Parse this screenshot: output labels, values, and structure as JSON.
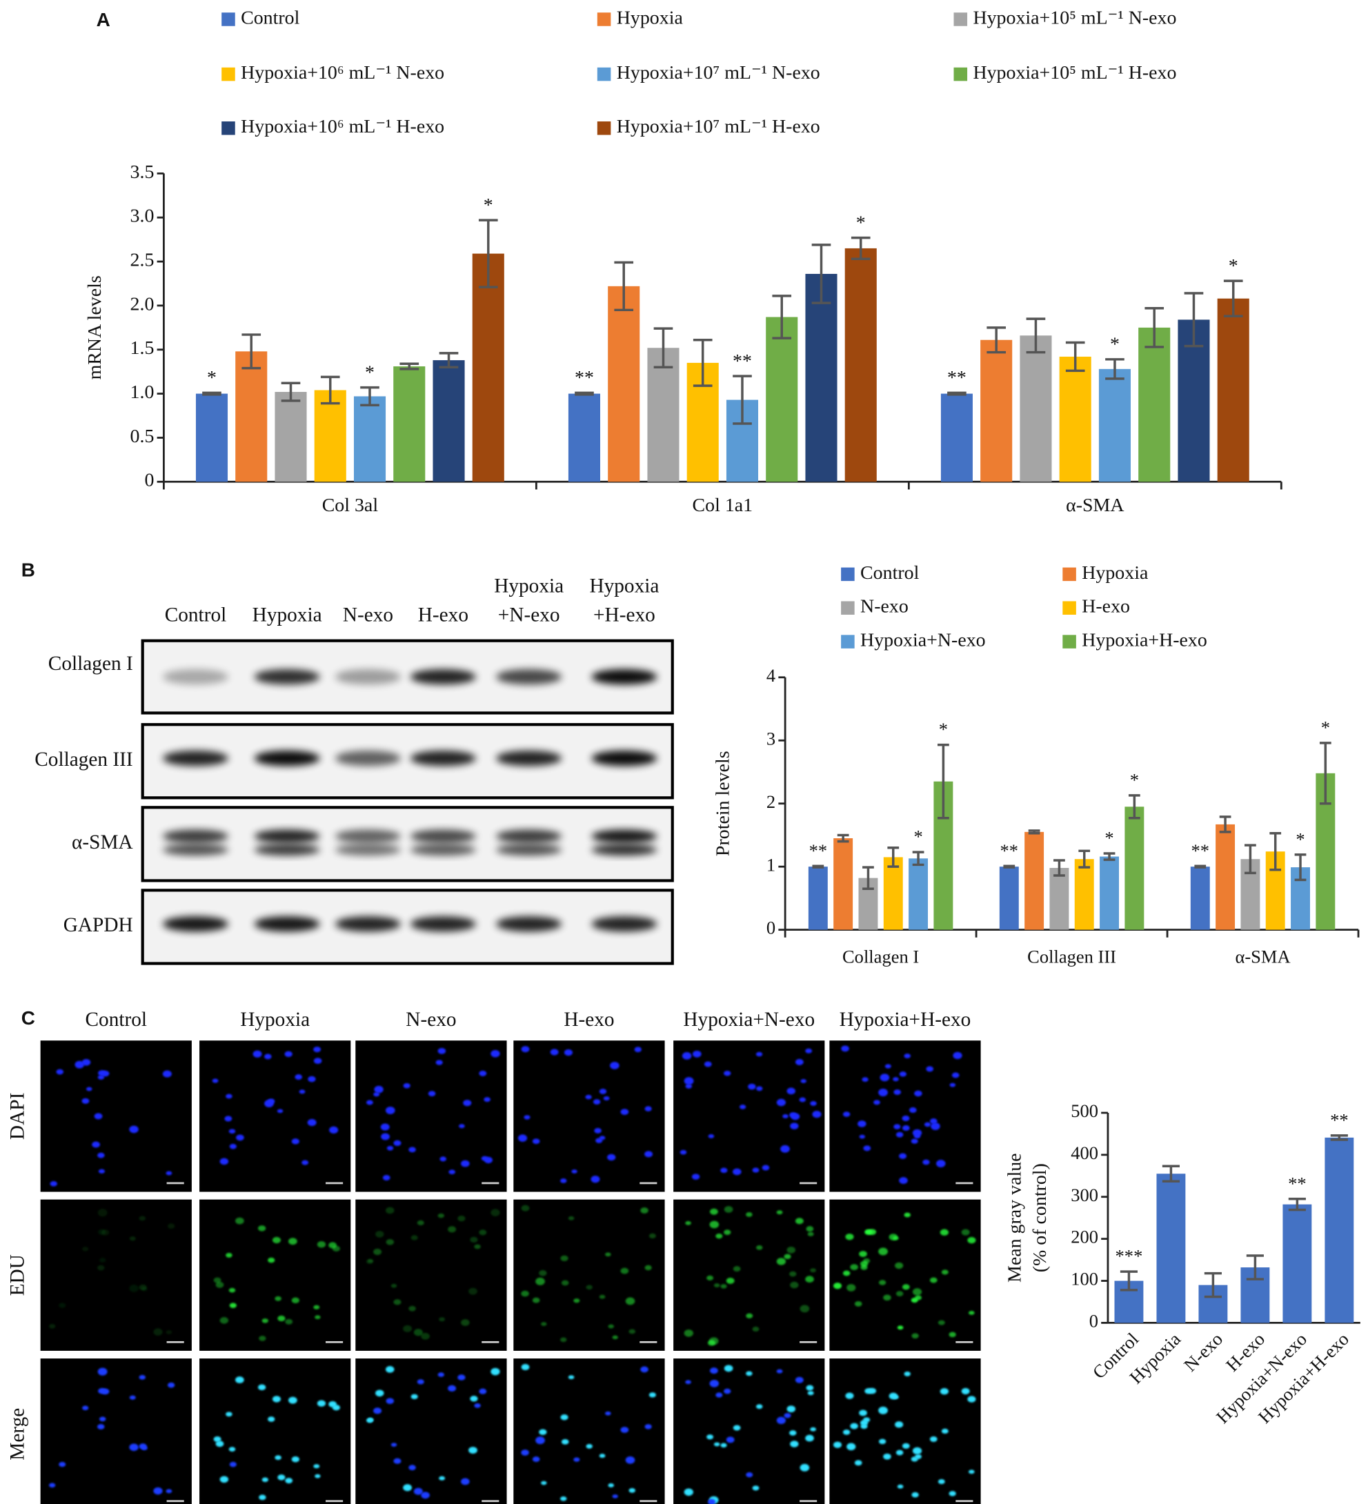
{
  "panel_labels": [
    "A",
    "B",
    "C"
  ],
  "chart_data": [
    {
      "type": "bar",
      "y_label": "mRNA levels",
      "categories": [
        "Col 3al",
        "Col 1a1",
        "α-SMA"
      ],
      "ylim": [
        0,
        3.5
      ],
      "yticks": [
        0,
        0.5,
        {
          "value": 1,
          "label": "1.0"
        },
        1.5,
        {
          "value": 2,
          "label": "2.0"
        },
        2.5,
        {
          "value": 3,
          "label": "3.0"
        },
        3.5
      ],
      "series": [
        {
          "name": "Control",
          "color": "#4472c4",
          "values": [
            1.0,
            1.0,
            1.0
          ],
          "errors": [
            0.01,
            0.01,
            0.01
          ],
          "marks": [
            "*",
            "**",
            "**"
          ]
        },
        {
          "name": "Hypoxia",
          "color": "#ed7d31",
          "values": [
            1.48,
            2.22,
            1.61
          ],
          "errors": [
            0.19,
            0.27,
            0.14
          ],
          "marks": [
            null,
            null,
            null
          ]
        },
        {
          "name": "Hypoxia+10⁵ mL⁻¹ N-exo",
          "color": "#a5a5a5",
          "values": [
            1.02,
            1.52,
            1.66
          ],
          "errors": [
            0.1,
            0.22,
            0.19
          ],
          "marks": [
            null,
            null,
            null
          ]
        },
        {
          "name": "Hypoxia+10⁶ mL⁻¹ N-exo",
          "color": "#ffc000",
          "values": [
            1.04,
            1.35,
            1.42
          ],
          "errors": [
            0.15,
            0.26,
            0.16
          ],
          "marks": [
            null,
            null,
            null
          ]
        },
        {
          "name": "Hypoxia+10⁷ mL⁻¹ N-exo",
          "color": "#5b9bd5",
          "values": [
            0.97,
            0.93,
            1.28
          ],
          "errors": [
            0.1,
            0.27,
            0.11
          ],
          "marks": [
            "*",
            "**",
            "*"
          ]
        },
        {
          "name": "Hypoxia+10⁵ mL⁻¹ H-exo",
          "color": "#70ad47",
          "values": [
            1.31,
            1.87,
            1.75
          ],
          "errors": [
            0.03,
            0.24,
            0.22
          ],
          "marks": [
            null,
            null,
            null
          ]
        },
        {
          "name": "Hypoxia+10⁶ mL⁻¹ H-exo",
          "color": "#264478",
          "values": [
            1.38,
            2.36,
            1.84
          ],
          "errors": [
            0.08,
            0.33,
            0.3
          ],
          "marks": [
            null,
            null,
            null
          ]
        },
        {
          "name": "Hypoxia+10⁷ mL⁻¹ H-exo",
          "color": "#9e480e",
          "values": [
            2.59,
            2.65,
            2.08
          ],
          "errors": [
            0.38,
            0.12,
            0.2
          ],
          "marks": [
            "*",
            "*",
            "*"
          ]
        }
      ]
    },
    {
      "type": "bar",
      "y_label": "Protein levels",
      "categories": [
        "Collagen I",
        "Collagen III",
        "α-SMA"
      ],
      "ylim": [
        0,
        4
      ],
      "yticks": [
        0,
        1,
        2,
        3,
        4
      ],
      "series": [
        {
          "name": "Control",
          "color": "#4472c4",
          "values": [
            1.0,
            1.0,
            1.0
          ],
          "errors": [
            0.01,
            0.01,
            0.01
          ],
          "marks": [
            "**",
            "**",
            "**"
          ]
        },
        {
          "name": "Hypoxia",
          "color": "#ed7d31",
          "values": [
            1.45,
            1.55,
            1.67
          ],
          "errors": [
            0.05,
            0.02,
            0.12
          ],
          "marks": [
            null,
            null,
            null
          ]
        },
        {
          "name": "N-exo",
          "color": "#a5a5a5",
          "values": [
            0.82,
            0.98,
            1.12
          ],
          "errors": [
            0.17,
            0.12,
            0.22
          ],
          "marks": [
            null,
            null,
            null
          ]
        },
        {
          "name": "H-exo",
          "color": "#ffc000",
          "values": [
            1.15,
            1.12,
            1.24
          ],
          "errors": [
            0.15,
            0.13,
            0.29
          ],
          "marks": [
            null,
            null,
            null
          ]
        },
        {
          "name": "Hypoxia+N-exo",
          "color": "#5b9bd5",
          "values": [
            1.13,
            1.16,
            0.99
          ],
          "errors": [
            0.1,
            0.05,
            0.2
          ],
          "marks": [
            "*",
            "*",
            "*"
          ]
        },
        {
          "name": "Hypoxia+H-exo",
          "color": "#70ad47",
          "values": [
            2.35,
            1.95,
            2.48
          ],
          "errors": [
            0.58,
            0.18,
            0.48
          ],
          "marks": [
            "*",
            "*",
            "*"
          ]
        }
      ]
    },
    {
      "type": "bar",
      "y_label": [
        "Mean gray value",
        "(% of control)"
      ],
      "categories": [
        "Control",
        "Hypoxia",
        "N-exo",
        "H-exo",
        "Hypoxia+N-exo",
        "Hypoxia+H-exo"
      ],
      "color": "#4472c4",
      "values": [
        100,
        355,
        90,
        132,
        282,
        441
      ],
      "errors": [
        22,
        18,
        28,
        28,
        13,
        5
      ],
      "marks": [
        "***",
        null,
        null,
        null,
        "**",
        "**"
      ],
      "ylim": [
        0,
        500
      ],
      "yticks": [
        0,
        100,
        200,
        300,
        400,
        500
      ]
    }
  ],
  "blot": {
    "columns": [
      [
        "Control"
      ],
      [
        "Hypoxia"
      ],
      [
        "N-exo"
      ],
      [
        "H-exo"
      ],
      [
        "Hypoxia",
        "+N-exo"
      ],
      [
        "Hypoxia",
        "+H-exo"
      ]
    ],
    "rows": [
      "Collagen I",
      "Collagen III",
      "α-SMA",
      "GAPDH"
    ]
  },
  "microscopy": {
    "columns": [
      "Control",
      "Hypoxia",
      "N-exo",
      "H-exo",
      "Hypoxia+N-exo",
      "Hypoxia+H-exo"
    ],
    "rows": [
      "DAPI",
      "EDU",
      "Merge"
    ]
  }
}
